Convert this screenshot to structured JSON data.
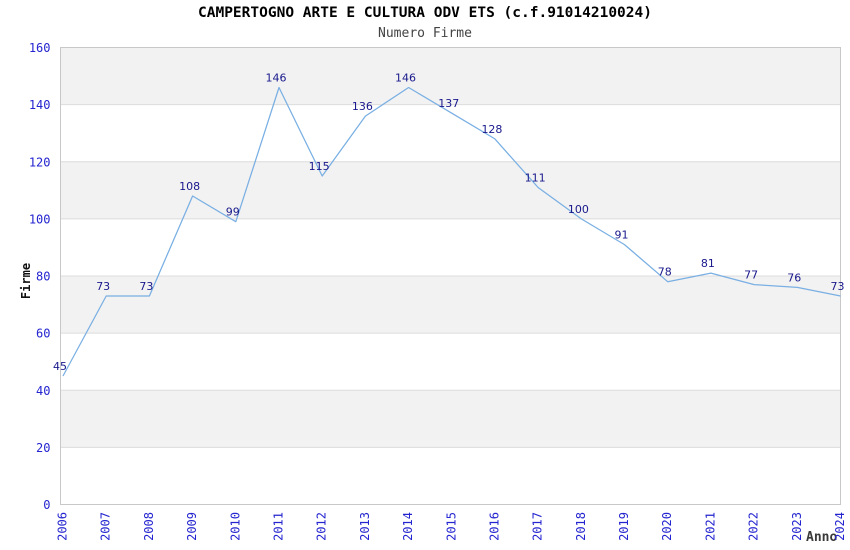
{
  "chart_data": {
    "type": "line",
    "title": "CAMPERTOGNO ARTE E CULTURA ODV ETS (c.f.91014210024)",
    "subtitle": "Numero Firme",
    "xlabel": "Anno",
    "ylabel": "Firme",
    "categories": [
      "2006",
      "2007",
      "2008",
      "2009",
      "2010",
      "2011",
      "2012",
      "2013",
      "2014",
      "2015",
      "2016",
      "2017",
      "2018",
      "2019",
      "2020",
      "2021",
      "2022",
      "2023",
      "2024"
    ],
    "series": [
      {
        "name": "Numero Firme",
        "values": [
          45,
          73,
          73,
          108,
          99,
          146,
          115,
          136,
          146,
          137,
          128,
          111,
          100,
          91,
          78,
          81,
          77,
          76,
          73
        ]
      }
    ],
    "ylim": [
      0,
      160
    ],
    "ytick_step": 20,
    "grid": true,
    "plot_bands_alternating": true,
    "legend_position": "none",
    "markers": false,
    "colors": {
      "line": "#79afe3",
      "data_label": "#18188c",
      "tick_label": "#2424d0",
      "band": "#f2f2f2",
      "gridline": "#dcdcdc",
      "plot_border": "#c8c8c8",
      "title": "#000000",
      "subtitle": "#434343",
      "axis_title": "#3a3a3a",
      "background": "#ffffff"
    }
  }
}
